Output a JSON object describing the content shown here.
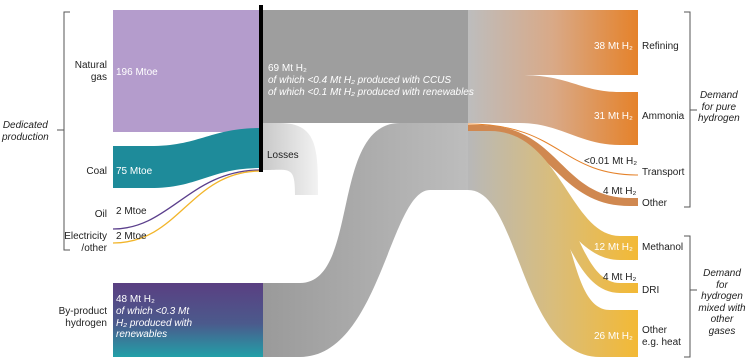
{
  "sources": {
    "natural_gas": {
      "label": "Natural\ngas",
      "value": "196 Mtoe",
      "color": "#b49ccc"
    },
    "coal": {
      "label": "Coal",
      "value": "75 Mtoe",
      "color": "#1e8b9a"
    },
    "oil": {
      "label": "Oil",
      "value": "2 Mtoe",
      "color": "#5b3f8c"
    },
    "electricity": {
      "label": "Electricity\n/other",
      "value": "2 Mtoe",
      "color": "#f2b52a"
    },
    "byproduct": {
      "label": "By-product\nhydrogen",
      "value": "48 Mt H₂",
      "note": "of which <0.3 Mt\nH₂ produced with\nrenewables",
      "color": "#5a3f82"
    }
  },
  "group_labels": {
    "dedicated": "Dedicated\nproduction",
    "pure": "Demand\nfor pure\nhydrogen",
    "mixed": "Demand for\nhydrogen\nmixed with\nother gases"
  },
  "hub": {
    "value": "69 Mt H₂",
    "note1": "of which <0.4 Mt H₂ produced with CCUS",
    "note2": "of which <0.1 Mt H₂ produced with renewables",
    "losses": "Losses"
  },
  "demands": {
    "refining": {
      "label": "Refining",
      "value": "38 Mt H₂",
      "color": "#e5822a"
    },
    "ammonia": {
      "label": "Ammonia",
      "value": "31 Mt H₂",
      "color": "#e5822a"
    },
    "transport": {
      "label": "Transport",
      "value": "<0.01 Mt H₂",
      "color": "#e5822a"
    },
    "other": {
      "label": "Other",
      "value": "4 Mt H₂",
      "color": "#e5822a"
    },
    "methanol": {
      "label": "Methanol",
      "value": "12 Mt H₂",
      "color": "#f3b935"
    },
    "dri": {
      "label": "DRI",
      "value": "4 Mt H₂",
      "color": "#f3b935"
    },
    "other_heat": {
      "label": "Other\ne.g. heat",
      "value": "26 Mt H₂",
      "color": "#f3b935"
    }
  }
}
